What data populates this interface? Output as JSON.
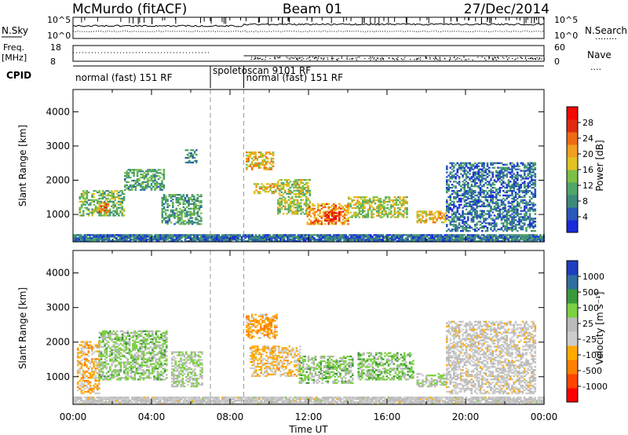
{
  "header": {
    "station": "McMurdo (fitACF)",
    "beam": "Beam 01",
    "date": "27/Dec/2014"
  },
  "noise_panel": {
    "left_label": "N.Sky",
    "right_label": "N.Search",
    "right_legend": "........",
    "ticks_left": [
      "10^5",
      "10^0"
    ],
    "ticks_right": [
      "10^5",
      "10^0"
    ]
  },
  "freq_panel": {
    "left_label_1": "Freq.",
    "left_label_2": "[MHz]",
    "right_label": "Nave",
    "right_legend": "....",
    "ticks_left": [
      "18",
      "8"
    ],
    "ticks_right": [
      "60",
      "0"
    ]
  },
  "cpid": {
    "label": "CPID",
    "segments": [
      {
        "name": "normal (fast) 151 RF",
        "start_h": 0,
        "end_h": 7.0
      },
      {
        "name": "spoletoscan 9101 RF",
        "start_h": 7.0,
        "end_h": 8.7
      },
      {
        "name": "normal (fast) 151 RF",
        "start_h": 8.7,
        "end_h": 24
      }
    ]
  },
  "colors": {
    "power": [
      "#1a2bd9",
      "#2a59b8",
      "#3c8a7a",
      "#4fa56a",
      "#7cc04a",
      "#e2c21e",
      "#f0a020",
      "#ee6a14",
      "#e02a10",
      "#f00a00"
    ],
    "velocity": [
      "#ff0000",
      "#ff4400",
      "#ff7f00",
      "#ffaa00",
      "#cccccc",
      "#bbbbbb",
      "#7cd043",
      "#3a9a3a",
      "#2f6f9f",
      "#1f3fbf"
    ]
  },
  "chart_data": [
    {
      "type": "heatmap",
      "panel": "power",
      "xlabel": "",
      "ylabel": "Slant Range [km]",
      "xlim": [
        0,
        24
      ],
      "ylim": [
        200,
        4650
      ],
      "yticks": [
        1000,
        2000,
        3000,
        4000
      ],
      "colorbar": {
        "label": "Power [dB]",
        "ticks": [
          "28",
          "24",
          "20",
          "16",
          "12",
          "8",
          "4"
        ],
        "range": [
          0,
          30
        ]
      },
      "echo_regions": [
        {
          "t0": 0.0,
          "t1": 24.0,
          "r0": 200,
          "r1": 420,
          "value": 6
        },
        {
          "t0": 0.3,
          "t1": 2.6,
          "r0": 950,
          "r1": 1700,
          "value": 12
        },
        {
          "t0": 1.2,
          "t1": 1.8,
          "r0": 1050,
          "r1": 1350,
          "value": 22
        },
        {
          "t0": 2.6,
          "t1": 4.6,
          "r0": 1700,
          "r1": 2300,
          "value": 10
        },
        {
          "t0": 4.5,
          "t1": 6.5,
          "r0": 700,
          "r1": 1600,
          "value": 10
        },
        {
          "t0": 5.7,
          "t1": 6.3,
          "r0": 2500,
          "r1": 2900,
          "value": 8
        },
        {
          "t0": 8.8,
          "t1": 10.2,
          "r0": 2300,
          "r1": 2800,
          "value": 18
        },
        {
          "t0": 9.2,
          "t1": 10.5,
          "r0": 1600,
          "r1": 1900,
          "value": 17
        },
        {
          "t0": 10.4,
          "t1": 12.1,
          "r0": 1000,
          "r1": 2000,
          "value": 14
        },
        {
          "t0": 11.9,
          "t1": 14.0,
          "r0": 700,
          "r1": 1300,
          "value": 20
        },
        {
          "t0": 12.8,
          "t1": 13.6,
          "r0": 800,
          "r1": 1050,
          "value": 27
        },
        {
          "t0": 14.0,
          "t1": 17.0,
          "r0": 900,
          "r1": 1500,
          "value": 15
        },
        {
          "t0": 17.5,
          "t1": 19.0,
          "r0": 750,
          "r1": 1100,
          "value": 18
        },
        {
          "t0": 19.0,
          "t1": 23.5,
          "r0": 500,
          "r1": 2500,
          "value": 6
        }
      ]
    },
    {
      "type": "heatmap",
      "panel": "velocity",
      "xlabel": "Time UT",
      "ylabel": "Slant Range [km]",
      "xlim": [
        0,
        24
      ],
      "ylim": [
        200,
        4650
      ],
      "yticks": [
        1000,
        2000,
        3000,
        4000
      ],
      "xticks": [
        "00:00",
        "04:00",
        "08:00",
        "12:00",
        "16:00",
        "20:00",
        "00:00"
      ],
      "colorbar": {
        "label": "Velocity [m s⁻¹]",
        "ticks": [
          "1000",
          "500",
          "100",
          "25",
          "-25",
          "-100",
          "-500",
          "-1000"
        ],
        "range": [
          -1200,
          1200
        ]
      },
      "echo_regions": [
        {
          "t0": 0.0,
          "t1": 24.0,
          "r0": 200,
          "r1": 420,
          "value": 0
        },
        {
          "t0": 0.2,
          "t1": 1.3,
          "r0": 500,
          "r1": 2000,
          "value": -300
        },
        {
          "t0": 1.3,
          "t1": 4.8,
          "r0": 900,
          "r1": 2300,
          "value": 300
        },
        {
          "t0": 5.0,
          "t1": 6.6,
          "r0": 700,
          "r1": 1700,
          "value": 200
        },
        {
          "t0": 8.8,
          "t1": 10.4,
          "r0": 2100,
          "r1": 2800,
          "value": -400
        },
        {
          "t0": 9.0,
          "t1": 11.6,
          "r0": 1000,
          "r1": 1900,
          "value": -250
        },
        {
          "t0": 11.5,
          "t1": 14.2,
          "r0": 800,
          "r1": 1600,
          "value": 300
        },
        {
          "t0": 14.5,
          "t1": 17.3,
          "r0": 900,
          "r1": 1700,
          "value": 350
        },
        {
          "t0": 17.5,
          "t1": 19.0,
          "r0": 700,
          "r1": 1100,
          "value": 200
        },
        {
          "t0": 19.0,
          "t1": 23.5,
          "r0": 500,
          "r1": 2600,
          "value": -50
        }
      ]
    }
  ]
}
